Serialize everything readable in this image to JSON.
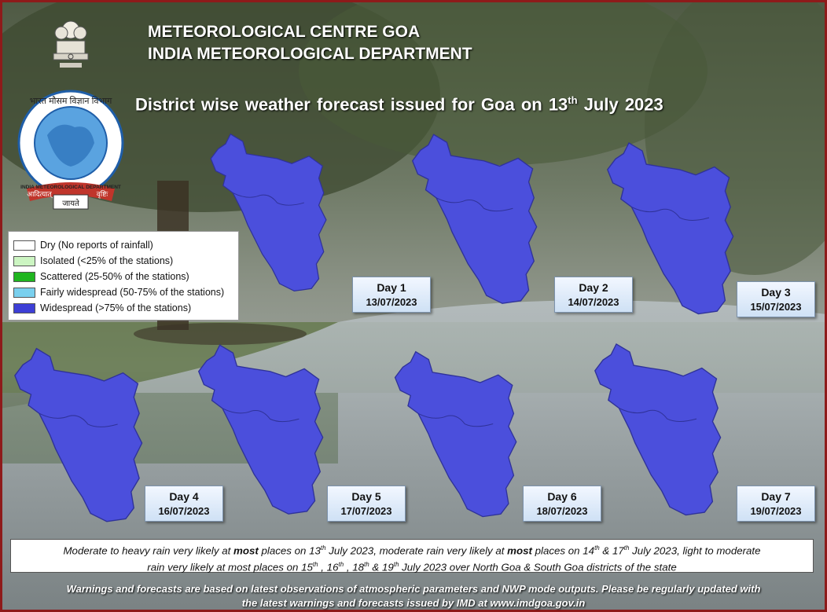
{
  "header": {
    "line1": "METEOROLOGICAL CENTRE GOA",
    "line2": "INDIA METEOROLOGICAL DEPARTMENT",
    "title_pre": "District wise weather forecast issued for Goa on 13",
    "title_sup": "th",
    "title_post": " July 2023"
  },
  "logos": {
    "emblem_icon": "state-emblem-icon",
    "imd_logo_icon": "imd-logo-icon",
    "imd_logo_ring_text": "INDIA METEOROLOGICAL DEPARTMENT",
    "imd_logo_top_text": "भारत मौसम विज्ञान विभाग",
    "imd_logo_motto1": "आदित्यात्",
    "imd_logo_motto2": "जायते",
    "imd_logo_motto3": "वृष्टिः"
  },
  "legend": {
    "items": [
      {
        "label": "Dry (No reports of rainfall)",
        "color": "#ffffff"
      },
      {
        "label": "Isolated (<25% of the stations)",
        "color": "#ccf5c2"
      },
      {
        "label": "Scattered  (25-50% of the stations)",
        "color": "#1fb51f"
      },
      {
        "label": "Fairly widespread  (50-75% of the stations)",
        "color": "#7ad0ee"
      },
      {
        "label": "Widespread (>75% of the stations)",
        "color": "#3d3fd6"
      }
    ]
  },
  "days": [
    {
      "label": "Day 1",
      "date": "13/07/2023",
      "category": "Widespread",
      "color": "#4b4fdc"
    },
    {
      "label": "Day 2",
      "date": "14/07/2023",
      "category": "Widespread",
      "color": "#4b4fdc"
    },
    {
      "label": "Day 3",
      "date": "15/07/2023",
      "category": "Widespread",
      "color": "#4b4fdc"
    },
    {
      "label": "Day 4",
      "date": "16/07/2023",
      "category": "Widespread",
      "color": "#4b4fdc"
    },
    {
      "label": "Day 5",
      "date": "17/07/2023",
      "category": "Widespread",
      "color": "#4b4fdc"
    },
    {
      "label": "Day 6",
      "date": "18/07/2023",
      "category": "Widespread",
      "color": "#4b4fdc"
    },
    {
      "label": "Day 7",
      "date": "19/07/2023",
      "category": "Widespread",
      "color": "#4b4fdc"
    }
  ],
  "summary": {
    "t1": "Moderate to heavy rain very likely at ",
    "b1": "most",
    "t2": " places on 13",
    "s1": "th",
    "t3": " July 2023, moderate rain very likely at ",
    "b2": "most",
    "t4": " places on 14",
    "s2": "th",
    "t5": " & 17",
    "s3": "th",
    "t6": " July 2023, light to moderate",
    "t7": "rain very likely at most places on 15",
    "s4": "th",
    "t8": " , 16",
    "s5": "th",
    "t9": " , 18",
    "s6": "th",
    "t10": " & 19",
    "s7": "th",
    "t11": " July 2023 over North Goa & South Goa districts of the state"
  },
  "footer": {
    "line1": "Warnings and forecasts are based on latest observations of atmospheric parameters and NWP mode outputs. Please be regularly updated with",
    "line2": "the latest warnings and forecasts issued by IMD at www.imdgoa.gov.in"
  },
  "colors": {
    "frame": "#8e1a1a",
    "widespread": "#4b4fdc"
  }
}
